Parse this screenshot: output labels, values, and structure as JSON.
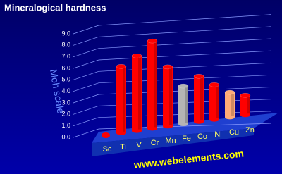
{
  "chart_data": {
    "type": "bar3d",
    "title": "Mineralogical hardness",
    "y_label": "Moh scale",
    "footer": "www.webelements.com",
    "categories": [
      "Sc",
      "Ti",
      "V",
      "Cr",
      "Mn",
      "Fe",
      "Co",
      "Ni",
      "Cu",
      "Zn"
    ],
    "values": [
      0,
      6.0,
      7.0,
      8.5,
      6.0,
      4.0,
      5.0,
      4.0,
      3.0,
      2.5
    ],
    "colors": [
      "#ff0000",
      "#ff0000",
      "#ff0000",
      "#ff0000",
      "#ff0000",
      "#b4b4b4",
      "#ff0000",
      "#ff0000",
      "#ffaa77",
      "#ff0000"
    ],
    "ylim": [
      0,
      9
    ],
    "yticks": [
      {
        "value": 0,
        "label": "0.0"
      },
      {
        "value": 1,
        "label": "1.0"
      },
      {
        "value": 2,
        "label": "2.0"
      },
      {
        "value": 3,
        "label": "3.0"
      },
      {
        "value": 4,
        "label": "4.0"
      },
      {
        "value": 5,
        "label": "5.0"
      },
      {
        "value": 6,
        "label": "6.0"
      },
      {
        "value": 7,
        "label": "7.0"
      },
      {
        "value": 8,
        "label": "8.0"
      },
      {
        "value": 9,
        "label": "9.0"
      }
    ],
    "grid": true
  }
}
